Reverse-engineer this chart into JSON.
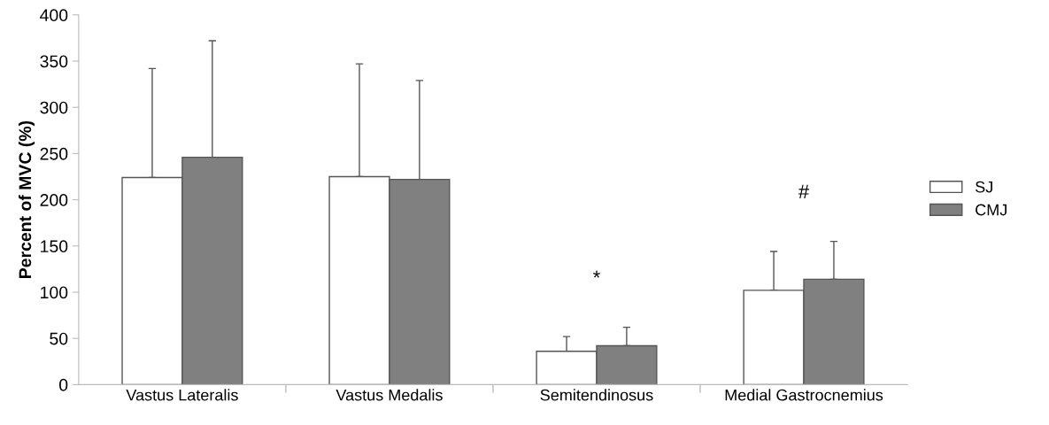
{
  "chart_data": {
    "type": "bar",
    "ylabel": "Percent of MVC (%)",
    "categories": [
      "Vastus Lateralis",
      "Vastus Medalis",
      "Semitendinosus",
      "Medial Gastrocnemius"
    ],
    "series": [
      {
        "name": "SJ",
        "color": "#ffffff",
        "values": [
          224,
          225,
          36,
          102
        ],
        "errors": [
          [
            224,
            342
          ],
          [
            225,
            347
          ],
          [
            36,
            52
          ],
          [
            102,
            144
          ]
        ]
      },
      {
        "name": "CMJ",
        "color": "#808080",
        "values": [
          246,
          222,
          42,
          114
        ],
        "errors": [
          [
            246,
            372
          ],
          [
            222,
            329
          ],
          [
            42,
            62
          ],
          [
            114,
            155
          ]
        ]
      }
    ],
    "ylim": [
      0,
      400
    ],
    "yticks": [
      0,
      50,
      100,
      150,
      200,
      250,
      300,
      350,
      400
    ],
    "annotations": [
      "*",
      "#"
    ],
    "legend": "right",
    "grid": false
  }
}
